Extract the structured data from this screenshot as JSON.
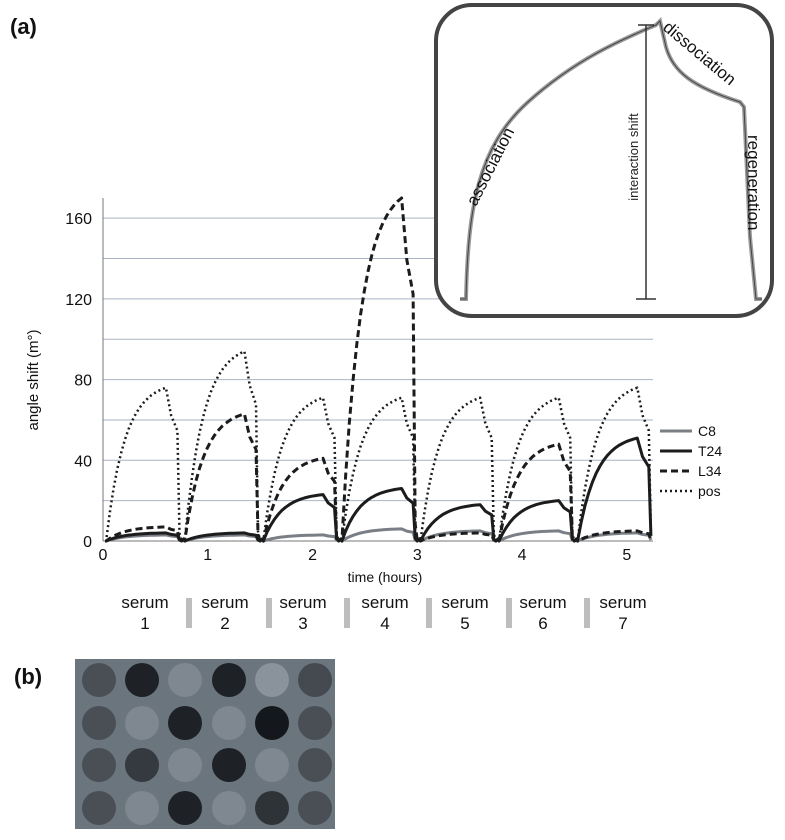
{
  "figure": {
    "panel_a_label": "(a)",
    "panel_b_label": "(b)"
  },
  "chart_data": {
    "type": "line",
    "xlabel": "time (hours)",
    "ylabel": "angle shift (m°)",
    "xlim": [
      0,
      5.25
    ],
    "ylim": [
      0,
      170
    ],
    "xticks": [
      "0",
      "1",
      "2",
      "3",
      "4",
      "5"
    ],
    "yticks": [
      "0",
      "40",
      "80",
      "120",
      "160"
    ],
    "grid": "horizontal",
    "legend": {
      "position": "right",
      "entries": [
        "C8",
        "T24",
        "L34",
        "pos"
      ]
    },
    "cycle_starts_hours": [
      0.0,
      0.75,
      1.5,
      2.25,
      3.0,
      3.75,
      4.5
    ],
    "series": [
      {
        "name": "C8",
        "style": "solid-gray",
        "color": "#7a7f86",
        "peak_values": [
          3,
          3,
          3,
          6,
          5,
          5,
          4
        ]
      },
      {
        "name": "T24",
        "style": "solid-black",
        "color": "#1c1c1c",
        "peak_values": [
          4,
          4,
          23,
          26,
          18,
          20,
          51
        ]
      },
      {
        "name": "L34",
        "style": "dashed",
        "color": "#1c1c1c",
        "peak_values": [
          7,
          63,
          41,
          170,
          4,
          48,
          5
        ]
      },
      {
        "name": "pos",
        "style": "dotted",
        "color": "#1c1c1c",
        "peak_values": [
          76,
          94,
          71,
          71,
          71,
          71,
          76
        ]
      }
    ]
  },
  "inset": {
    "labels": {
      "association": "association",
      "dissociation": "dissociation",
      "regeneration": "regeneration",
      "interaction_shift": "interaction shift"
    }
  },
  "serum_groups": [
    {
      "line1": "serum",
      "line2": "1"
    },
    {
      "line1": "serum",
      "line2": "2"
    },
    {
      "line1": "serum",
      "line2": "3"
    },
    {
      "line1": "serum",
      "line2": "4"
    },
    {
      "line1": "serum",
      "line2": "5"
    },
    {
      "line1": "serum",
      "line2": "6"
    },
    {
      "line1": "serum",
      "line2": "7"
    }
  ],
  "plate": {
    "rows": 4,
    "cols": 6,
    "background": "#6b757e",
    "spot_shades": [
      [
        "#4a4f56",
        "#1e2126",
        "#7f8890",
        "#1e2126",
        "#8a939b",
        "#454a51"
      ],
      [
        "#4a4f56",
        "#7f8890",
        "#1e2126",
        "#7f8890",
        "#14171b",
        "#4a4f56"
      ],
      [
        "#4a4f56",
        "#353a40",
        "#7f8890",
        "#1e2126",
        "#7f8890",
        "#4a4f56"
      ],
      [
        "#4a4f56",
        "#7f8890",
        "#1e2126",
        "#7f8890",
        "#2e3338",
        "#4a4f56"
      ]
    ]
  }
}
